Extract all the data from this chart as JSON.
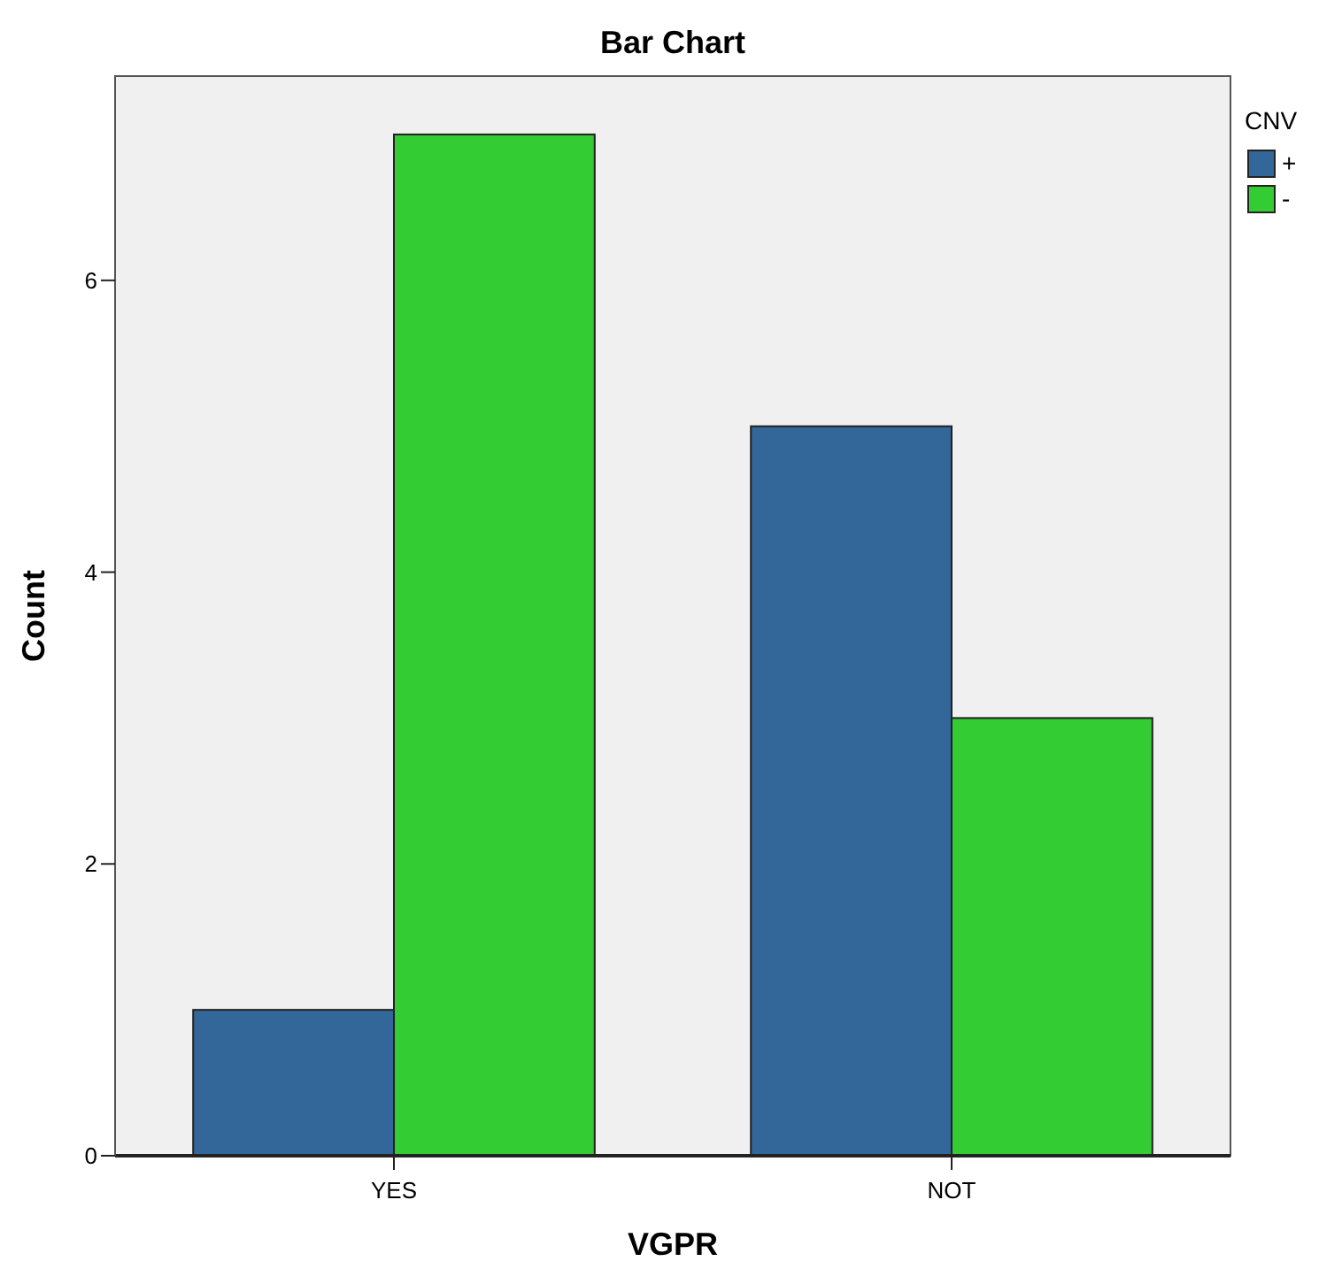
{
  "chart_data": {
    "type": "bar",
    "title": "Bar Chart",
    "xlabel": "VGPR",
    "ylabel": "Count",
    "legend_title": "CNV",
    "categories": [
      "YES",
      "NOT"
    ],
    "series": [
      {
        "name": "+",
        "color": "#336699",
        "values": [
          1,
          5
        ]
      },
      {
        "name": "-",
        "color": "#33cc33",
        "values": [
          7,
          3
        ]
      }
    ],
    "ylim": [
      0,
      7.4
    ],
    "yticks": [
      0,
      2,
      4,
      6
    ],
    "grid": false,
    "legend": "top right"
  }
}
